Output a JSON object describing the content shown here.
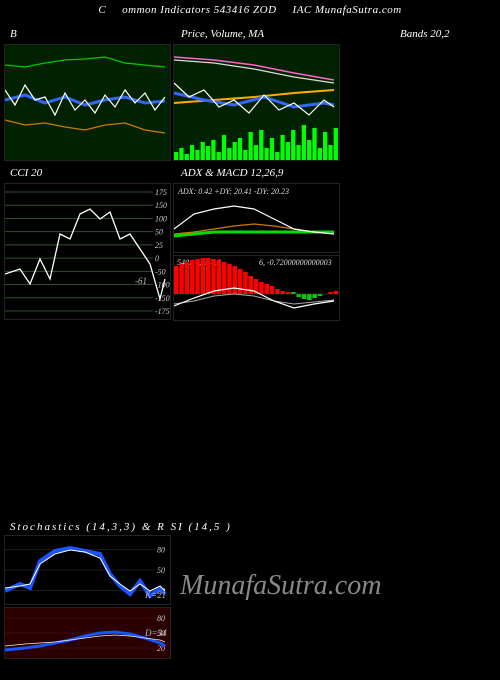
{
  "header": {
    "left": "C",
    "mid": "ommon Indicators 543416  ZOD",
    "right": "IAC MunafaSutra.com"
  },
  "bands_label": "Bands 20,2",
  "bb": {
    "title": "B",
    "bg": "#002200",
    "upper": {
      "color": "#00c800",
      "pts": [
        [
          0,
          20
        ],
        [
          20,
          22
        ],
        [
          40,
          18
        ],
        [
          60,
          15
        ],
        [
          80,
          14
        ],
        [
          100,
          12
        ],
        [
          120,
          18
        ],
        [
          140,
          20
        ],
        [
          160,
          22
        ]
      ]
    },
    "lower": {
      "color": "#cc7a00",
      "pts": [
        [
          0,
          75
        ],
        [
          20,
          80
        ],
        [
          40,
          78
        ],
        [
          60,
          82
        ],
        [
          80,
          85
        ],
        [
          100,
          80
        ],
        [
          120,
          78
        ],
        [
          140,
          85
        ],
        [
          160,
          88
        ]
      ]
    },
    "mid": {
      "color": "#3366ff",
      "width": 3,
      "pts": [
        [
          0,
          55
        ],
        [
          20,
          50
        ],
        [
          40,
          58
        ],
        [
          60,
          52
        ],
        [
          80,
          60
        ],
        [
          100,
          55
        ],
        [
          120,
          52
        ],
        [
          140,
          58
        ],
        [
          160,
          56
        ]
      ]
    },
    "price": {
      "color": "#ffffff",
      "pts": [
        [
          0,
          45
        ],
        [
          10,
          60
        ],
        [
          20,
          40
        ],
        [
          30,
          55
        ],
        [
          40,
          52
        ],
        [
          50,
          70
        ],
        [
          60,
          48
        ],
        [
          70,
          65
        ],
        [
          80,
          55
        ],
        [
          90,
          68
        ],
        [
          100,
          50
        ],
        [
          110,
          62
        ],
        [
          120,
          45
        ],
        [
          130,
          58
        ],
        [
          140,
          48
        ],
        [
          150,
          65
        ],
        [
          160,
          52
        ]
      ]
    }
  },
  "price": {
    "title": "Price, Volume, MA",
    "bg": "#002200",
    "ma1": {
      "color": "#ff66cc",
      "pts": [
        [
          0,
          12
        ],
        [
          40,
          15
        ],
        [
          80,
          20
        ],
        [
          120,
          28
        ],
        [
          160,
          35
        ]
      ]
    },
    "ma2": {
      "color": "#dddddd",
      "pts": [
        [
          0,
          15
        ],
        [
          40,
          18
        ],
        [
          80,
          24
        ],
        [
          120,
          32
        ],
        [
          160,
          38
        ]
      ]
    },
    "ma3": {
      "color": "#ffaa00",
      "width": 2,
      "pts": [
        [
          0,
          58
        ],
        [
          40,
          55
        ],
        [
          80,
          52
        ],
        [
          120,
          48
        ],
        [
          160,
          45
        ]
      ]
    },
    "ma4": {
      "color": "#3366ff",
      "width": 3,
      "pts": [
        [
          0,
          48
        ],
        [
          30,
          55
        ],
        [
          60,
          60
        ],
        [
          90,
          52
        ],
        [
          120,
          62
        ],
        [
          150,
          58
        ],
        [
          160,
          60
        ]
      ]
    },
    "priceLine": {
      "color": "#ffffff",
      "pts": [
        [
          0,
          38
        ],
        [
          15,
          52
        ],
        [
          30,
          45
        ],
        [
          45,
          62
        ],
        [
          60,
          55
        ],
        [
          75,
          68
        ],
        [
          90,
          50
        ],
        [
          105,
          65
        ],
        [
          120,
          58
        ],
        [
          135,
          70
        ],
        [
          150,
          55
        ],
        [
          160,
          62
        ]
      ]
    },
    "volume": {
      "color": "#00ff00",
      "bars": [
        8,
        12,
        6,
        15,
        10,
        18,
        14,
        20,
        8,
        25,
        12,
        18,
        22,
        10,
        28,
        15,
        30,
        12,
        22,
        8,
        25,
        18,
        30,
        15,
        35,
        20,
        32,
        12,
        28,
        15,
        32
      ]
    }
  },
  "cci": {
    "title": "CCI 20",
    "bg": "#000000",
    "grid_color": "#305030",
    "levels": [
      175,
      150,
      100,
      50,
      25,
      0,
      -50,
      -100,
      -150,
      -175
    ],
    "line": {
      "color": "#ffffff",
      "pts": [
        [
          0,
          90
        ],
        [
          15,
          85
        ],
        [
          25,
          100
        ],
        [
          35,
          75
        ],
        [
          45,
          95
        ],
        [
          55,
          50
        ],
        [
          65,
          55
        ],
        [
          75,
          30
        ],
        [
          85,
          25
        ],
        [
          95,
          35
        ],
        [
          105,
          28
        ],
        [
          115,
          55
        ],
        [
          125,
          50
        ],
        [
          135,
          65
        ],
        [
          145,
          80
        ],
        [
          155,
          115
        ],
        [
          160,
          95
        ]
      ]
    },
    "annot": "-61"
  },
  "adx": {
    "title": "ADX  & MACD 12,26,9",
    "label": "ADX: 0.42  +DY: 20.41 -DY: 20.23",
    "bg": "#000000",
    "l1": {
      "color": "#ffffff",
      "pts": [
        [
          0,
          45
        ],
        [
          20,
          30
        ],
        [
          40,
          25
        ],
        [
          60,
          22
        ],
        [
          80,
          25
        ],
        [
          100,
          35
        ],
        [
          120,
          45
        ],
        [
          140,
          48
        ],
        [
          160,
          50
        ]
      ]
    },
    "l2": {
      "color": "#cc7a00",
      "pts": [
        [
          0,
          50
        ],
        [
          20,
          48
        ],
        [
          40,
          45
        ],
        [
          60,
          42
        ],
        [
          80,
          40
        ],
        [
          100,
          42
        ],
        [
          120,
          45
        ],
        [
          140,
          48
        ],
        [
          160,
          50
        ]
      ]
    },
    "l3": {
      "color": "#00dd00",
      "width": 3,
      "pts": [
        [
          0,
          52
        ],
        [
          20,
          50
        ],
        [
          40,
          48
        ],
        [
          60,
          48
        ],
        [
          80,
          48
        ],
        [
          100,
          48
        ],
        [
          120,
          48
        ],
        [
          140,
          48
        ],
        [
          160,
          48
        ]
      ]
    }
  },
  "macd": {
    "label_left": "540.14, 540.8",
    "label_right": "6, -0.72000000000003",
    "bg": "#000000",
    "hist_color": "#ff0000",
    "hist": [
      28,
      30,
      32,
      34,
      35,
      36,
      36,
      35,
      34,
      32,
      30,
      28,
      25,
      22,
      18,
      15,
      12,
      10,
      8,
      5,
      3,
      2,
      2,
      -3,
      -5,
      -6,
      -4,
      -2,
      0,
      2,
      3
    ],
    "line1": {
      "color": "#ffffff",
      "pts": [
        [
          0,
          50
        ],
        [
          20,
          42
        ],
        [
          40,
          35
        ],
        [
          60,
          32
        ],
        [
          80,
          35
        ],
        [
          100,
          45
        ],
        [
          120,
          52
        ],
        [
          140,
          48
        ],
        [
          160,
          45
        ]
      ]
    },
    "line2": {
      "color": "#aaaaaa",
      "pts": [
        [
          0,
          48
        ],
        [
          20,
          45
        ],
        [
          40,
          40
        ],
        [
          60,
          38
        ],
        [
          80,
          40
        ],
        [
          100,
          45
        ],
        [
          120,
          48
        ],
        [
          140,
          46
        ],
        [
          160,
          44
        ]
      ]
    },
    "green_seg": {
      "color": "#00cc00",
      "start": 115,
      "end": 145
    }
  },
  "stoch_title": "Stochastics                    (14,3,3) & R                    SI                       (14,5                              )",
  "stochK": {
    "bg": "#000000",
    "ticks": [
      80,
      50,
      20
    ],
    "main": {
      "color": "#1a53ff",
      "width": 4,
      "pts": [
        [
          0,
          55
        ],
        [
          15,
          48
        ],
        [
          25,
          52
        ],
        [
          35,
          25
        ],
        [
          50,
          15
        ],
        [
          65,
          12
        ],
        [
          80,
          15
        ],
        [
          95,
          18
        ],
        [
          105,
          38
        ],
        [
          115,
          50
        ],
        [
          125,
          58
        ],
        [
          135,
          45
        ],
        [
          145,
          60
        ],
        [
          155,
          52
        ],
        [
          160,
          58
        ]
      ]
    },
    "sig": {
      "color": "#ffffff",
      "pts": [
        [
          0,
          52
        ],
        [
          15,
          50
        ],
        [
          25,
          48
        ],
        [
          35,
          28
        ],
        [
          50,
          18
        ],
        [
          65,
          14
        ],
        [
          80,
          16
        ],
        [
          95,
          22
        ],
        [
          105,
          40
        ],
        [
          115,
          48
        ],
        [
          125,
          55
        ],
        [
          135,
          48
        ],
        [
          145,
          55
        ],
        [
          155,
          50
        ],
        [
          160,
          55
        ]
      ]
    },
    "annot": "K=21"
  },
  "stochD": {
    "bg": "#2a0000",
    "ticks": [
      80,
      50,
      20
    ],
    "main": {
      "color": "#1a53ff",
      "width": 3,
      "pts": [
        [
          0,
          42
        ],
        [
          20,
          40
        ],
        [
          35,
          38
        ],
        [
          50,
          35
        ],
        [
          65,
          32
        ],
        [
          80,
          28
        ],
        [
          95,
          25
        ],
        [
          110,
          24
        ],
        [
          125,
          26
        ],
        [
          140,
          30
        ],
        [
          155,
          35
        ],
        [
          160,
          38
        ]
      ]
    },
    "sig": {
      "color": "#ffeecc",
      "pts": [
        [
          0,
          38
        ],
        [
          20,
          36
        ],
        [
          35,
          35
        ],
        [
          50,
          34
        ],
        [
          65,
          32
        ],
        [
          80,
          30
        ],
        [
          95,
          28
        ],
        [
          110,
          27
        ],
        [
          125,
          28
        ],
        [
          140,
          30
        ],
        [
          155,
          32
        ],
        [
          160,
          34
        ]
      ]
    },
    "annot": "D=34"
  },
  "watermark": "MunafaSutra.com"
}
